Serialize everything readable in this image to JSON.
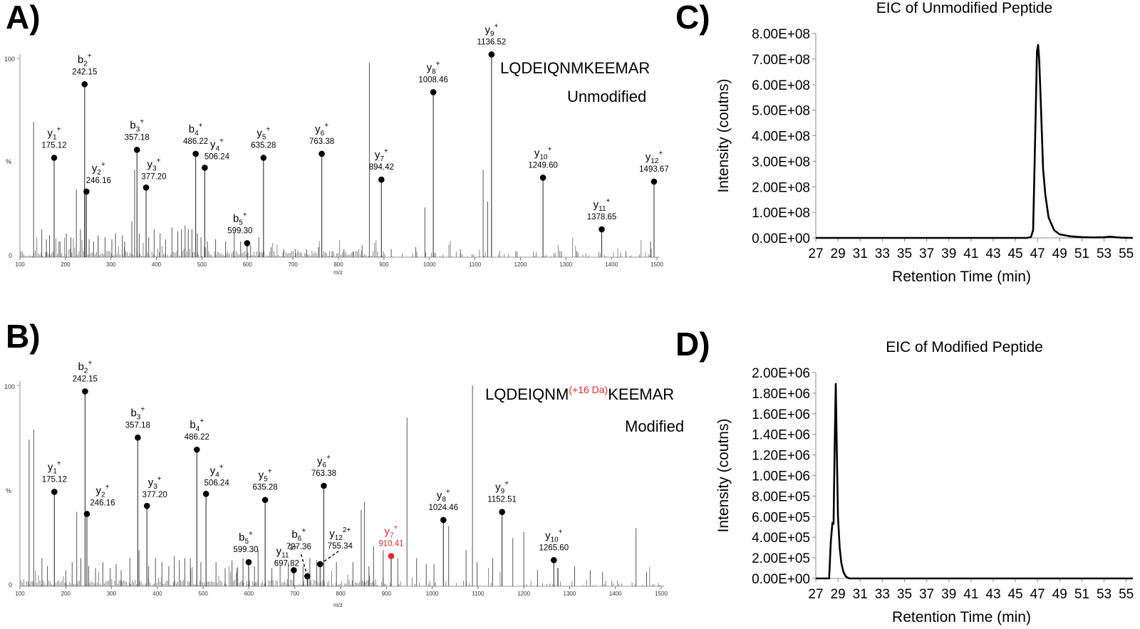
{
  "panels": {
    "A": {
      "letter": "A)",
      "sequence": "LQDEIQNMKEEMAR",
      "state": "Unmodified",
      "y_top_label": "100",
      "y_mid_label": "%",
      "y_zero_label": "0",
      "x_axis_label": "m/z"
    },
    "B": {
      "letter": "B)",
      "sequence_left": "LQDEIQNM",
      "sequence_mod": "(+16 Da)",
      "sequence_right": "KEEMAR",
      "state": "Modified",
      "y_top_label": "100",
      "y_mid_label": "%",
      "y_zero_label": "0",
      "x_axis_label": "m/z"
    },
    "C": {
      "letter": "C)"
    },
    "D": {
      "letter": "D)"
    }
  },
  "colors": {
    "line": "#000000",
    "highlight": "#e8262b",
    "spectrum": "#555555"
  },
  "chart_data": [
    {
      "id": "A",
      "type": "bar",
      "title": "LQDEIQNMKEEMAR Unmodified",
      "xlabel": "m/z",
      "ylabel": "%",
      "xlim": [
        100,
        1500
      ],
      "ylim": [
        0,
        100
      ],
      "xticks": [
        100,
        200,
        300,
        400,
        500,
        600,
        700,
        800,
        900,
        1000,
        1100,
        1200,
        1300,
        1400,
        1500
      ],
      "peaks": [
        [
          130,
          68
        ],
        [
          148,
          14
        ],
        [
          158,
          9
        ],
        [
          165,
          11
        ],
        [
          188,
          8
        ],
        [
          202,
          12
        ],
        [
          212,
          10
        ],
        [
          224,
          34
        ],
        [
          233,
          14
        ],
        [
          243,
          34
        ],
        [
          252,
          9
        ],
        [
          262,
          8
        ],
        [
          272,
          11
        ],
        [
          287,
          10
        ],
        [
          302,
          9
        ],
        [
          310,
          12
        ],
        [
          325,
          11
        ],
        [
          330,
          8
        ],
        [
          346,
          18
        ],
        [
          352,
          44
        ],
        [
          362,
          12
        ],
        [
          383,
          10
        ],
        [
          395,
          14
        ],
        [
          408,
          12
        ],
        [
          420,
          9
        ],
        [
          434,
          15
        ],
        [
          447,
          13
        ],
        [
          455,
          14
        ],
        [
          463,
          16
        ],
        [
          470,
          14
        ],
        [
          478,
          14
        ],
        [
          490,
          12
        ],
        [
          498,
          10
        ],
        [
          512,
          8
        ],
        [
          530,
          9
        ],
        [
          552,
          8
        ],
        [
          571,
          12
        ],
        [
          585,
          8
        ],
        [
          607,
          6
        ],
        [
          625,
          10
        ],
        [
          652,
          5
        ],
        [
          680,
          4
        ],
        [
          705,
          4
        ],
        [
          730,
          4
        ],
        [
          756,
          5
        ],
        [
          786,
          3
        ],
        [
          812,
          4
        ],
        [
          833,
          3
        ],
        [
          852,
          6
        ],
        [
          868,
          98
        ],
        [
          916,
          4
        ],
        [
          970,
          5
        ],
        [
          990,
          25
        ],
        [
          1068,
          4
        ],
        [
          1118,
          44
        ],
        [
          1128,
          28
        ],
        [
          1190,
          3
        ],
        [
          1290,
          3
        ],
        [
          1324,
          3
        ],
        [
          1432,
          3
        ],
        [
          1486,
          8
        ]
      ],
      "annotations": [
        {
          "ion": "b",
          "n": "2",
          "z": "+",
          "mz": 242.15,
          "intensity": 87,
          "label": "242.15",
          "color": "black"
        },
        {
          "ion": "b",
          "n": "3",
          "z": "+",
          "mz": 357.18,
          "intensity": 54,
          "label": "357.18",
          "color": "black"
        },
        {
          "ion": "b",
          "n": "4",
          "z": "+",
          "mz": 486.22,
          "intensity": 52,
          "label": "486.22",
          "color": "black"
        },
        {
          "ion": "b",
          "n": "5",
          "z": "+",
          "mz": 599.3,
          "intensity": 7,
          "label": "599.30",
          "color": "black"
        },
        {
          "ion": "y",
          "n": "1",
          "z": "+",
          "mz": 175.12,
          "intensity": 50,
          "label": "175.12",
          "color": "black"
        },
        {
          "ion": "y",
          "n": "2",
          "z": "+",
          "mz": 246.16,
          "intensity": 33,
          "label": "246.16",
          "color": "black"
        },
        {
          "ion": "y",
          "n": "3",
          "z": "+",
          "mz": 377.2,
          "intensity": 35,
          "label": "377.20",
          "color": "black"
        },
        {
          "ion": "y",
          "n": "4",
          "z": "+",
          "mz": 506.24,
          "intensity": 45,
          "label": "506.24",
          "color": "black"
        },
        {
          "ion": "y",
          "n": "5",
          "z": "+",
          "mz": 635.28,
          "intensity": 50,
          "label": "635.28",
          "color": "black"
        },
        {
          "ion": "y",
          "n": "6",
          "z": "+",
          "mz": 763.38,
          "intensity": 52,
          "label": "763.38",
          "color": "black"
        },
        {
          "ion": "y",
          "n": "7",
          "z": "+",
          "mz": 894.42,
          "intensity": 39,
          "label": "894.42",
          "color": "black"
        },
        {
          "ion": "y",
          "n": "8",
          "z": "+",
          "mz": 1008.46,
          "intensity": 83,
          "label": "1008.46",
          "color": "black"
        },
        {
          "ion": "y",
          "n": "9",
          "z": "+",
          "mz": 1136.52,
          "intensity": 102,
          "label": "1136.52",
          "color": "black"
        },
        {
          "ion": "y",
          "n": "10",
          "z": "+",
          "mz": 1249.6,
          "intensity": 40,
          "label": "1249.60",
          "color": "black"
        },
        {
          "ion": "y",
          "n": "11",
          "z": "+",
          "mz": 1378.65,
          "intensity": 14,
          "label": "1378.65",
          "color": "black"
        },
        {
          "ion": "y",
          "n": "12",
          "z": "+",
          "mz": 1493.67,
          "intensity": 38,
          "label": "1493.67",
          "color": "black"
        }
      ]
    },
    {
      "id": "B",
      "type": "bar",
      "title": "LQDEIQNM(+16 Da)KEEMAR Modified",
      "xlabel": "m/z",
      "ylabel": "%",
      "xlim": [
        100,
        1500
      ],
      "ylim": [
        0,
        100
      ],
      "xticks": [
        100,
        200,
        300,
        400,
        500,
        600,
        700,
        800,
        900,
        1000,
        1100,
        1200,
        1300,
        1400,
        1500
      ],
      "peaks": [
        [
          120,
          73
        ],
        [
          130,
          78
        ],
        [
          148,
          14
        ],
        [
          160,
          10
        ],
        [
          200,
          8
        ],
        [
          214,
          12
        ],
        [
          224,
          37
        ],
        [
          233,
          14
        ],
        [
          250,
          10
        ],
        [
          265,
          9
        ],
        [
          281,
          12
        ],
        [
          297,
          9
        ],
        [
          310,
          11
        ],
        [
          321,
          8
        ],
        [
          340,
          14
        ],
        [
          360,
          18
        ],
        [
          381,
          10
        ],
        [
          396,
          14
        ],
        [
          410,
          12
        ],
        [
          425,
          10
        ],
        [
          437,
          15
        ],
        [
          448,
          13
        ],
        [
          460,
          14
        ],
        [
          472,
          14
        ],
        [
          495,
          12
        ],
        [
          528,
          12
        ],
        [
          548,
          9
        ],
        [
          563,
          13
        ],
        [
          574,
          9
        ],
        [
          587,
          14
        ],
        [
          612,
          10
        ],
        [
          620,
          18
        ],
        [
          650,
          9
        ],
        [
          668,
          10
        ],
        [
          686,
          12
        ],
        [
          718,
          10
        ],
        [
          733,
          14
        ],
        [
          748,
          13
        ],
        [
          791,
          12
        ],
        [
          827,
          12
        ],
        [
          845,
          38
        ],
        [
          852,
          42
        ],
        [
          862,
          10
        ],
        [
          872,
          20
        ],
        [
          893,
          18
        ],
        [
          925,
          14
        ],
        [
          945,
          84
        ],
        [
          966,
          14
        ],
        [
          987,
          11
        ],
        [
          1004,
          11
        ],
        [
          1036,
          30
        ],
        [
          1074,
          18
        ],
        [
          1088,
          100
        ],
        [
          1098,
          12
        ],
        [
          1132,
          14
        ],
        [
          1176,
          24
        ],
        [
          1200,
          27
        ],
        [
          1230,
          8
        ],
        [
          1275,
          9
        ],
        [
          1311,
          10
        ],
        [
          1345,
          8
        ],
        [
          1372,
          7
        ],
        [
          1445,
          29
        ],
        [
          1468,
          7
        ]
      ],
      "annotations": [
        {
          "ion": "b",
          "n": "2",
          "z": "+",
          "mz": 242.15,
          "intensity": 97,
          "label": "242.15",
          "color": "black"
        },
        {
          "ion": "b",
          "n": "3",
          "z": "+",
          "mz": 357.18,
          "intensity": 74,
          "label": "357.18",
          "color": "black"
        },
        {
          "ion": "b",
          "n": "4",
          "z": "+",
          "mz": 486.22,
          "intensity": 68,
          "label": "486.22",
          "color": "black"
        },
        {
          "ion": "b",
          "n": "5",
          "z": "+",
          "mz": 599.3,
          "intensity": 12,
          "label": "599.30",
          "color": "black"
        },
        {
          "ion": "b",
          "n": "6",
          "z": "+",
          "mz": 727.36,
          "intensity": 5,
          "label": "727.36",
          "color": "black"
        },
        {
          "ion": "y",
          "n": "1",
          "z": "+",
          "mz": 175.12,
          "intensity": 47,
          "label": "175.12",
          "color": "black"
        },
        {
          "ion": "y",
          "n": "2",
          "z": "+",
          "mz": 246.16,
          "intensity": 36,
          "label": "246.16",
          "color": "black"
        },
        {
          "ion": "y",
          "n": "3",
          "z": "+",
          "mz": 377.2,
          "intensity": 40,
          "label": "377.20",
          "color": "black"
        },
        {
          "ion": "y",
          "n": "4",
          "z": "+",
          "mz": 506.24,
          "intensity": 46,
          "label": "506.24",
          "color": "black"
        },
        {
          "ion": "y",
          "n": "5",
          "z": "+",
          "mz": 635.28,
          "intensity": 43,
          "label": "635.28",
          "color": "black"
        },
        {
          "ion": "y",
          "n": "6",
          "z": "+",
          "mz": 763.38,
          "intensity": 50,
          "label": "763.38",
          "color": "black"
        },
        {
          "ion": "y",
          "n": "7",
          "z": "+",
          "mz": 910.41,
          "intensity": 15,
          "label": "910.41",
          "color": "red"
        },
        {
          "ion": "y",
          "n": "8",
          "z": "+",
          "mz": 1024.46,
          "intensity": 33,
          "label": "1024.46",
          "color": "black"
        },
        {
          "ion": "y",
          "n": "9",
          "z": "+",
          "mz": 1152.51,
          "intensity": 37,
          "label": "1152.51",
          "color": "black"
        },
        {
          "ion": "y",
          "n": "10",
          "z": "+",
          "mz": 1265.6,
          "intensity": 13,
          "label": "1265.60",
          "color": "black"
        },
        {
          "ion": "y",
          "n": "11",
          "z": "2+",
          "mz": 697.82,
          "intensity": 8,
          "label": "697.82",
          "color": "black"
        },
        {
          "ion": "y",
          "n": "12",
          "z": "2+",
          "mz": 755.34,
          "intensity": 11,
          "label": "755.34",
          "color": "black"
        }
      ]
    },
    {
      "id": "C",
      "type": "line",
      "title": "EIC of Unmodified Peptide",
      "xlabel": "Retention Time (min)",
      "ylabel": "Intensity (coutns)",
      "xlim": [
        27,
        55.6
      ],
      "ylim": [
        0,
        800000000
      ],
      "xticks": [
        27,
        29,
        31,
        33,
        35,
        37,
        39,
        41,
        43,
        45,
        47,
        49,
        51,
        53,
        55
      ],
      "yticks": [
        "0.00E+00",
        "1.00E+08",
        "2.00E+08",
        "3.00E+08",
        "4.00E+08",
        "5.00E+08",
        "6.00E+08",
        "7.00E+08",
        "8.00E+08"
      ],
      "x": [
        27,
        46.0,
        46.4,
        46.6,
        46.8,
        46.95,
        47.05,
        47.15,
        47.3,
        47.5,
        47.7,
        48.0,
        48.5,
        49.0,
        50.0,
        51.0,
        52.0,
        53.0,
        53.6,
        54.0,
        54.5,
        55.6
      ],
      "y": [
        0,
        0,
        3000000,
        30000000,
        420000000,
        730000000,
        755000000,
        700000000,
        520000000,
        270000000,
        170000000,
        80000000,
        30000000,
        14000000,
        6000000,
        3000000,
        2000000,
        2500000,
        5000000,
        3000000,
        1000000,
        0
      ]
    },
    {
      "id": "D",
      "type": "line",
      "title": "EIC of Modified Peptide",
      "xlabel": "Retention Time (min)",
      "ylabel": "Intensity (coutns)",
      "xlim": [
        27,
        55.6
      ],
      "ylim": [
        0,
        2000000
      ],
      "xticks": [
        27,
        29,
        31,
        33,
        35,
        37,
        39,
        41,
        43,
        45,
        47,
        49,
        51,
        53,
        55
      ],
      "yticks": [
        "0.00E+00",
        "2.00E+05",
        "4.00E+05",
        "6.00E+05",
        "8.00E+05",
        "1.00E+06",
        "1.20E+06",
        "1.40E+06",
        "1.60E+06",
        "1.80E+06",
        "2.00E+06"
      ],
      "x": [
        27,
        28.2,
        28.35,
        28.5,
        28.6,
        28.7,
        28.8,
        28.9,
        29.0,
        29.15,
        29.3,
        29.5,
        29.7,
        30.0,
        55.6
      ],
      "y": [
        0,
        0,
        350000,
        540000,
        530000,
        1300000,
        1890000,
        1200000,
        600000,
        300000,
        150000,
        60000,
        20000,
        0,
        0
      ]
    }
  ]
}
